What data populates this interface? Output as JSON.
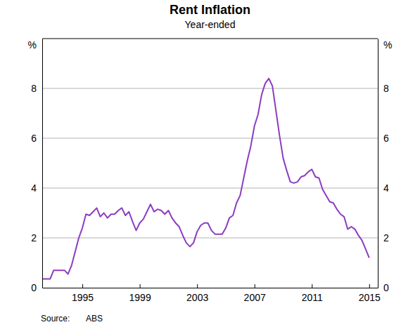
{
  "chart_data": {
    "type": "line",
    "title": "Rent Inflation",
    "subtitle": "Year-ended",
    "y_label": "%",
    "y2_label": "%",
    "source_label": "Source:",
    "source": "ABS",
    "color": "#8c3cc0",
    "grid": true,
    "xlim": [
      1992.2,
      2015.6
    ],
    "xticks": [
      1995,
      1999,
      2003,
      2007,
      2011,
      2015
    ],
    "ylim": [
      0,
      10
    ],
    "yticks": [
      0,
      2,
      4,
      6,
      8
    ],
    "y2lim": [
      0,
      10
    ],
    "y2ticks": [
      0,
      2,
      4,
      6,
      8
    ],
    "x": [
      1992.25,
      1992.5,
      1992.75,
      1993.0,
      1993.25,
      1993.5,
      1993.75,
      1994.0,
      1994.25,
      1994.5,
      1994.75,
      1995.0,
      1995.25,
      1995.5,
      1995.75,
      1996.0,
      1996.25,
      1996.5,
      1996.75,
      1997.0,
      1997.25,
      1997.5,
      1997.75,
      1998.0,
      1998.25,
      1998.5,
      1998.75,
      1999.0,
      1999.25,
      1999.5,
      1999.75,
      2000.0,
      2000.25,
      2000.5,
      2000.75,
      2001.0,
      2001.25,
      2001.5,
      2001.75,
      2002.0,
      2002.25,
      2002.5,
      2002.75,
      2003.0,
      2003.25,
      2003.5,
      2003.75,
      2004.0,
      2004.25,
      2004.5,
      2004.75,
      2005.0,
      2005.25,
      2005.5,
      2005.75,
      2006.0,
      2006.25,
      2006.5,
      2006.75,
      2007.0,
      2007.25,
      2007.5,
      2007.75,
      2008.0,
      2008.25,
      2008.5,
      2008.75,
      2009.0,
      2009.25,
      2009.5,
      2009.75,
      2010.0,
      2010.25,
      2010.5,
      2010.75,
      2011.0,
      2011.25,
      2011.5,
      2011.75,
      2012.0,
      2012.25,
      2012.5,
      2012.75,
      2013.0,
      2013.25,
      2013.5,
      2013.75,
      2014.0,
      2014.25,
      2014.5,
      2014.75,
      2015.0
    ],
    "values": [
      0.35,
      0.35,
      0.35,
      0.7,
      0.7,
      0.7,
      0.7,
      0.55,
      0.9,
      1.45,
      2.0,
      2.4,
      2.95,
      2.9,
      3.05,
      3.2,
      2.85,
      3.0,
      2.8,
      2.95,
      2.95,
      3.1,
      3.2,
      2.9,
      3.05,
      2.65,
      2.3,
      2.6,
      2.75,
      3.05,
      3.35,
      3.05,
      3.15,
      3.1,
      2.95,
      3.1,
      2.8,
      2.6,
      2.45,
      2.1,
      1.8,
      1.65,
      1.8,
      2.25,
      2.5,
      2.6,
      2.6,
      2.3,
      2.15,
      2.15,
      2.15,
      2.4,
      2.8,
      2.9,
      3.4,
      3.7,
      4.4,
      5.1,
      5.7,
      6.5,
      6.95,
      7.75,
      8.2,
      8.4,
      8.1,
      7.1,
      6.1,
      5.2,
      4.7,
      4.25,
      4.2,
      4.25,
      4.45,
      4.5,
      4.65,
      4.75,
      4.45,
      4.4,
      3.95,
      3.7,
      3.45,
      3.4,
      3.15,
      2.95,
      2.85,
      2.35,
      2.45,
      2.35,
      2.1,
      1.9,
      1.55,
      1.2
    ]
  }
}
